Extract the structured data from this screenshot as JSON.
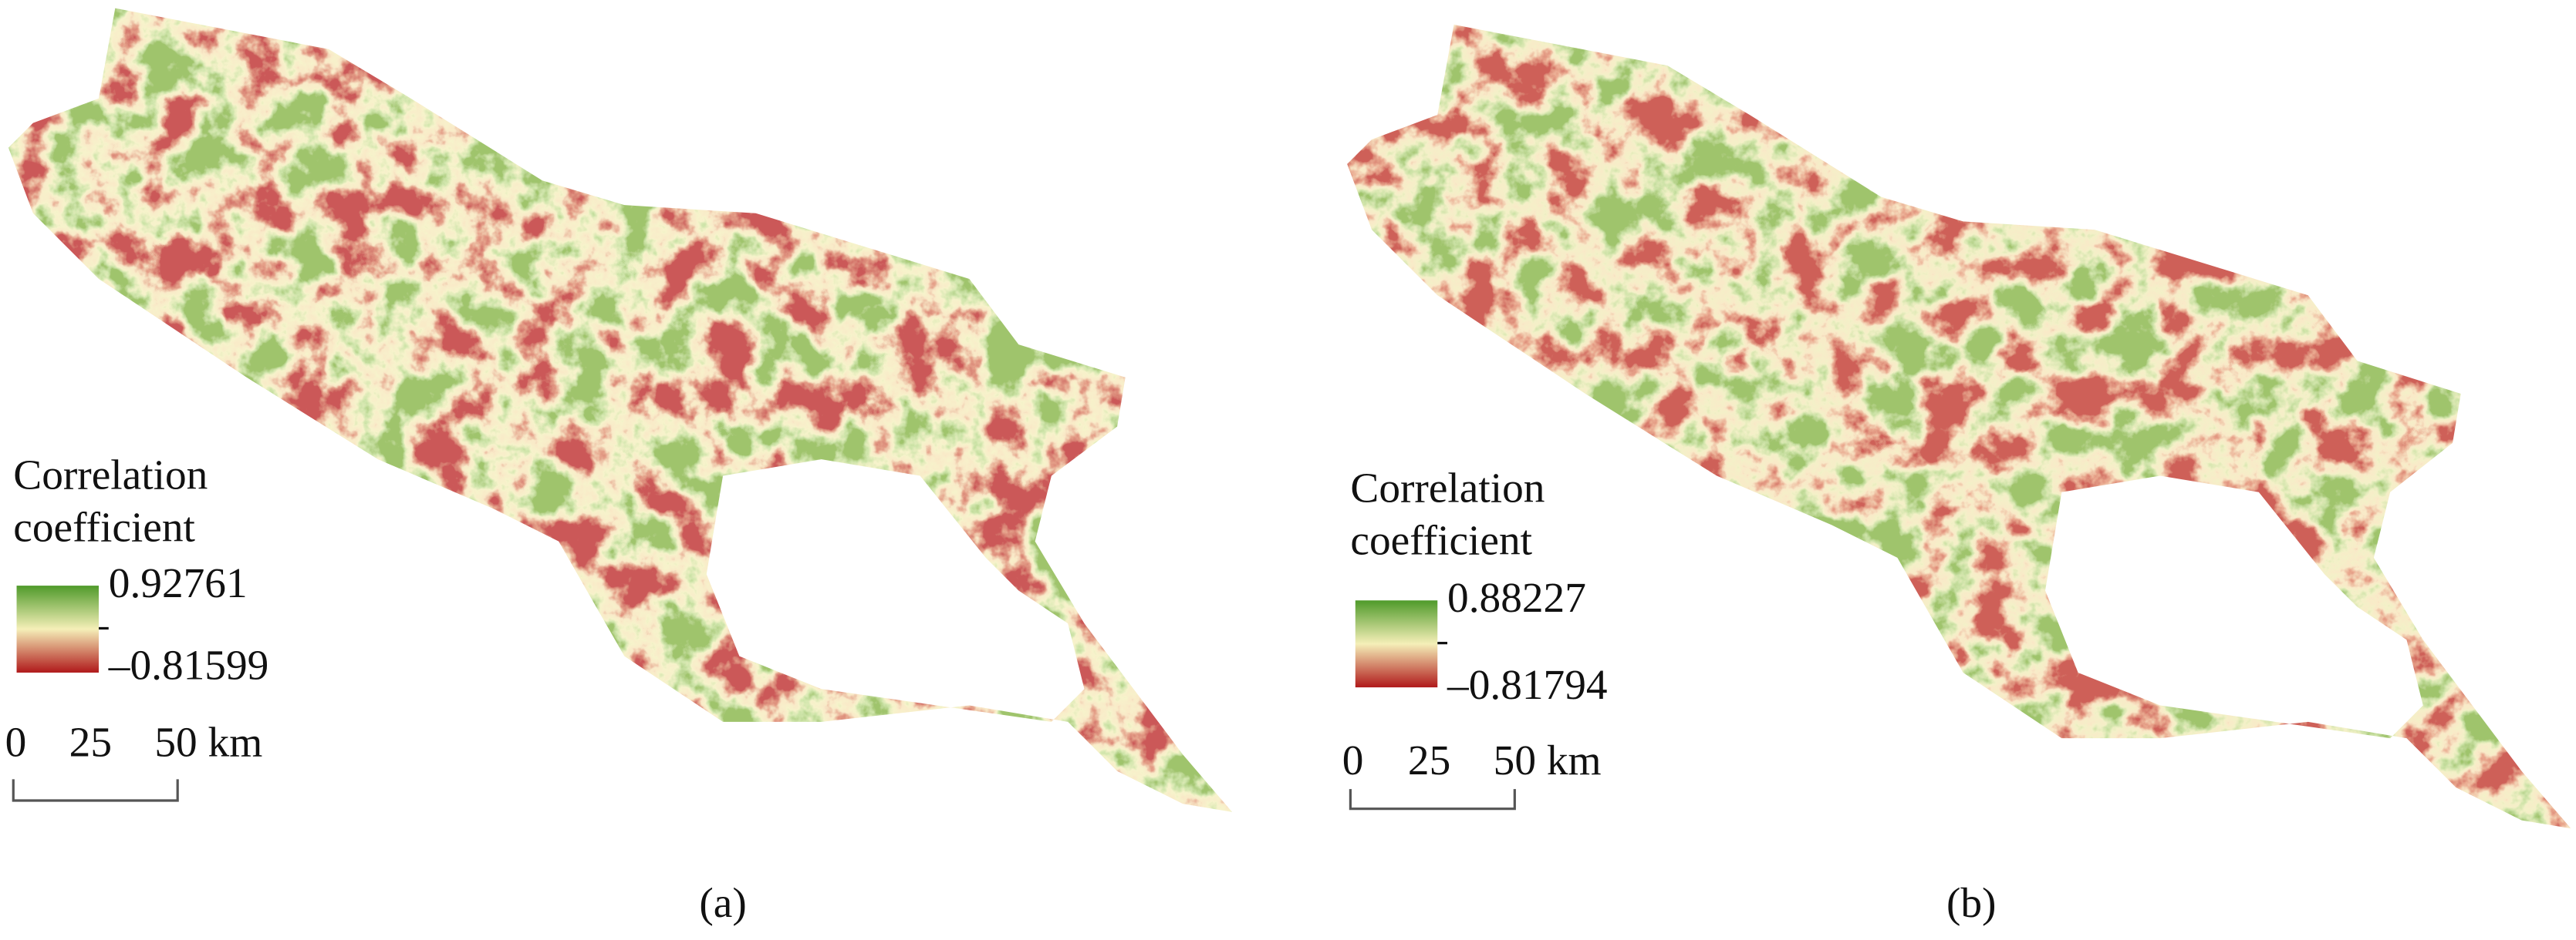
{
  "panels": [
    {
      "legend": {
        "title": [
          "Correlation",
          "coefficient"
        ],
        "max": "0.92761",
        "min": "–0.81599"
      },
      "scale_bar": {
        "labels": [
          "0",
          "25",
          "50 km"
        ]
      },
      "caption": "(a)"
    },
    {
      "legend": {
        "title": [
          "Correlation",
          "coefficient"
        ],
        "max": "0.88227",
        "min": "–0.81794"
      },
      "scale_bar": {
        "labels": [
          "0",
          "25",
          "50 km"
        ]
      },
      "caption": "(b)"
    }
  ]
}
